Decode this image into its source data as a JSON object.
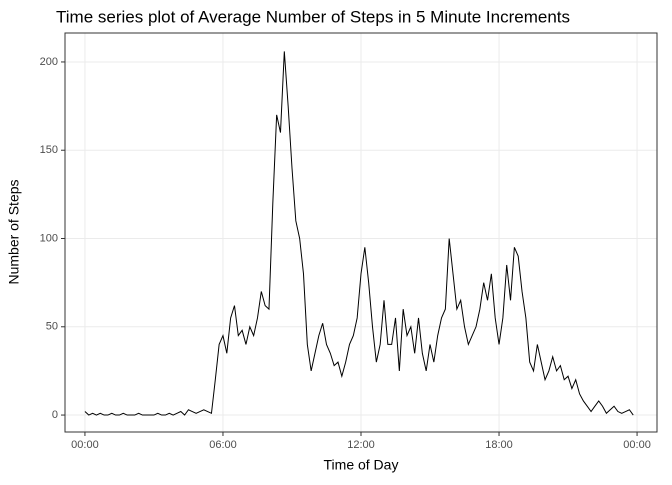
{
  "chart_data": {
    "type": "line",
    "title": "Time series plot of Average Number of Steps in 5 Minute Increments",
    "x_label": "Time of Day",
    "y_label": "Number of Steps",
    "x": [
      0,
      10,
      20,
      30,
      40,
      50,
      60,
      70,
      80,
      90,
      100,
      110,
      120,
      130,
      140,
      150,
      160,
      170,
      180,
      190,
      200,
      210,
      220,
      230,
      240,
      250,
      260,
      270,
      280,
      290,
      300,
      310,
      320,
      330,
      340,
      350,
      360,
      370,
      380,
      390,
      400,
      410,
      420,
      430,
      440,
      450,
      460,
      470,
      480,
      490,
      500,
      510,
      520,
      530,
      540,
      550,
      560,
      570,
      580,
      590,
      600,
      610,
      620,
      630,
      640,
      650,
      660,
      670,
      680,
      690,
      700,
      710,
      720,
      730,
      740,
      750,
      760,
      770,
      780,
      790,
      800,
      810,
      820,
      830,
      840,
      850,
      860,
      870,
      880,
      890,
      900,
      910,
      920,
      930,
      940,
      950,
      960,
      970,
      980,
      990,
      1000,
      1010,
      1020,
      1030,
      1040,
      1050,
      1060,
      1070,
      1080,
      1090,
      1100,
      1110,
      1120,
      1130,
      1140,
      1150,
      1160,
      1170,
      1180,
      1190,
      1200,
      1210,
      1220,
      1230,
      1240,
      1250,
      1260,
      1270,
      1280,
      1290,
      1300,
      1310,
      1320,
      1330,
      1340,
      1350,
      1360,
      1370,
      1380,
      1390,
      1400,
      1410,
      1420,
      1430
    ],
    "series": [
      {
        "name": "steps",
        "color": "#000000",
        "values": [
          2,
          0,
          1,
          0,
          1,
          0,
          0,
          1,
          0,
          0,
          1,
          0,
          0,
          0,
          1,
          0,
          0,
          0,
          0,
          1,
          0,
          0,
          1,
          0,
          1,
          2,
          0,
          3,
          2,
          1,
          2,
          3,
          2,
          1,
          20,
          40,
          45,
          35,
          55,
          62,
          45,
          48,
          40,
          50,
          45,
          55,
          70,
          62,
          60,
          120,
          170,
          160,
          206,
          175,
          140,
          110,
          100,
          80,
          40,
          25,
          35,
          45,
          52,
          40,
          35,
          28,
          30,
          22,
          30,
          40,
          45,
          55,
          80,
          95,
          75,
          50,
          30,
          40,
          65,
          40,
          40,
          55,
          25,
          60,
          45,
          50,
          35,
          55,
          35,
          25,
          40,
          30,
          45,
          55,
          60,
          100,
          80,
          60,
          65,
          50,
          40,
          45,
          50,
          60,
          75,
          65,
          80,
          55,
          40,
          55,
          85,
          65,
          95,
          90,
          70,
          55,
          30,
          25,
          40,
          30,
          20,
          25,
          33,
          25,
          28,
          20,
          22,
          15,
          20,
          12,
          8,
          5,
          2,
          5,
          8,
          5,
          1,
          3,
          5,
          2,
          1,
          2,
          3,
          0
        ]
      }
    ],
    "xlim": [
      -52,
      1492
    ],
    "xticks": [
      {
        "value": 0,
        "label": "00:00"
      },
      {
        "value": 360,
        "label": "06:00"
      },
      {
        "value": 720,
        "label": "12:00"
      },
      {
        "value": 1080,
        "label": "18:00"
      },
      {
        "value": 1440,
        "label": "00:00"
      }
    ],
    "ylim": [
      -9.6,
      216.4
    ],
    "yticks": [
      0,
      50,
      100,
      150,
      200
    ],
    "grid": true
  }
}
